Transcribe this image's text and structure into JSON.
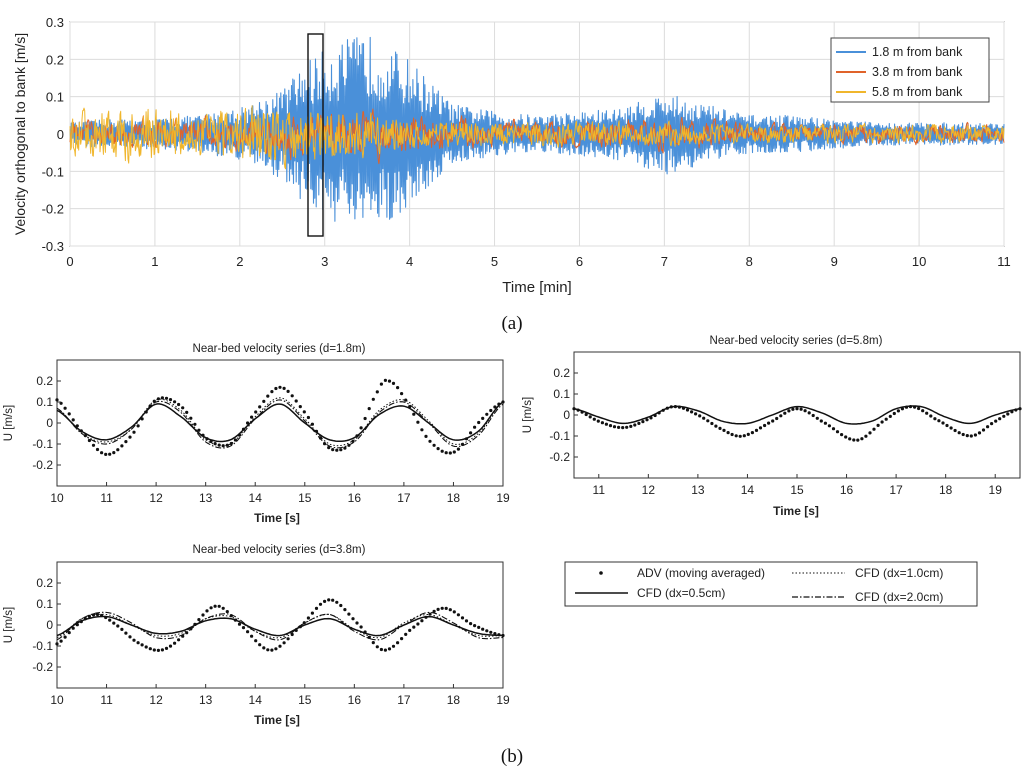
{
  "captions": {
    "a": "(a)",
    "b": "(b)"
  },
  "top_chart": {
    "xlabel": "Time [min]",
    "ylabel": "Velocity orthogonal to bank [m/s]",
    "xlim": [
      0,
      11
    ],
    "ylim": [
      -0.3,
      0.3
    ],
    "xticks": [
      "0",
      "1",
      "2",
      "3",
      "4",
      "5",
      "6",
      "7",
      "8",
      "9",
      "10",
      "11"
    ],
    "yticks": [
      "0.3",
      "0.2",
      "0.1",
      "0",
      "-0.1",
      "-0.2",
      "-0.3"
    ],
    "legend": [
      "1.8 m from bank",
      "3.8 m from bank",
      "5.8 m from bank"
    ]
  },
  "panels": {
    "d18": {
      "title": "Near-bed velocity series (d=1.8m)",
      "xlabel": "Time [s]",
      "ylabel": "U [m/s]"
    },
    "d58": {
      "title": "Near-bed velocity series (d=5.8m)",
      "xlabel": "Time [s]",
      "ylabel": "U [m/s]"
    },
    "d38": {
      "title": "Near-bed velocity series (d=3.8m)",
      "xlabel": "Time [s]",
      "ylabel": "U [m/s]"
    }
  },
  "small_ticks": {
    "y": [
      "0.2",
      "0.1",
      "0",
      "-0.1",
      "-0.2"
    ],
    "x_10_19": [
      "10",
      "11",
      "12",
      "13",
      "14",
      "15",
      "16",
      "17",
      "18",
      "19"
    ],
    "x_11_19": [
      "11",
      "12",
      "13",
      "14",
      "15",
      "16",
      "17",
      "18",
      "19"
    ]
  },
  "legend_b": {
    "adv": "ADV (moving averaged)",
    "cfd05": "CFD (dx=0.5cm)",
    "cfd10": "CFD (dx=1.0cm)",
    "cfd20": "CFD (dx=2.0cm)"
  },
  "colors": {
    "blue": "#4a90d9",
    "orange": "#e0632a",
    "yellow": "#f0b62c",
    "axis": "#444444",
    "grid": "#dcdcdc"
  },
  "chart_data": [
    {
      "type": "line",
      "x_unit": "min",
      "xlim": [
        0,
        11
      ],
      "ylim": [
        -0.3,
        0.3
      ],
      "highlight_box": {
        "x": [
          2.85,
          3.0
        ],
        "y": [
          -0.27,
          0.27
        ]
      },
      "series": [
        {
          "name": "1.8 m from bank",
          "color": "#4a90d9",
          "envelope_x": [
            0,
            0.5,
            1,
            1.5,
            2,
            2.5,
            2.8,
            3.2,
            3.5,
            4,
            4.5,
            5,
            5.5,
            6,
            6.5,
            7,
            7.5,
            8,
            8.5,
            9,
            9.5,
            10,
            10.5,
            11
          ],
          "envelope_amp": [
            0.03,
            0.04,
            0.04,
            0.05,
            0.07,
            0.12,
            0.2,
            0.25,
            0.27,
            0.2,
            0.08,
            0.06,
            0.05,
            0.06,
            0.07,
            0.11,
            0.08,
            0.05,
            0.05,
            0.04,
            0.03,
            0.03,
            0.03,
            0.03
          ]
        },
        {
          "name": "3.8 m from bank",
          "color": "#e0632a",
          "envelope_x": [
            0,
            1,
            2,
            3,
            4,
            5,
            6,
            7,
            8,
            9,
            10,
            11
          ],
          "envelope_amp": [
            0.04,
            0.05,
            0.05,
            0.08,
            0.07,
            0.04,
            0.04,
            0.05,
            0.04,
            0.03,
            0.03,
            0.03
          ]
        },
        {
          "name": "5.8 m from bank",
          "color": "#f0b62c",
          "envelope_x": [
            0,
            0.5,
            1,
            1.5,
            2,
            2.5,
            3,
            3.5,
            4,
            5,
            6,
            7,
            8,
            9,
            10,
            11
          ],
          "envelope_amp": [
            0.07,
            0.09,
            0.09,
            0.07,
            0.09,
            0.1,
            0.09,
            0.07,
            0.05,
            0.04,
            0.04,
            0.04,
            0.03,
            0.03,
            0.03,
            0.03
          ]
        }
      ]
    },
    {
      "type": "line",
      "title": "Near-bed velocity series (d=1.8m)",
      "xlim": [
        10,
        19
      ],
      "ylim": [
        -0.3,
        0.3
      ],
      "x_unit": "s",
      "series": [
        {
          "name": "ADV (moving averaged)",
          "style": "dots",
          "x": [
            10,
            10.5,
            11,
            11.5,
            12,
            12.5,
            13,
            13.5,
            14,
            14.5,
            15,
            15.5,
            16,
            16.5,
            16.7,
            17,
            17.5,
            18,
            18.5,
            19
          ],
          "y": [
            0.11,
            -0.04,
            -0.15,
            -0.06,
            0.11,
            0.08,
            -0.07,
            -0.1,
            0.05,
            0.17,
            0.05,
            -0.12,
            -0.08,
            0.16,
            0.2,
            0.12,
            -0.08,
            -0.14,
            0.0,
            0.1
          ]
        },
        {
          "name": "CFD (dx=0.5cm)",
          "style": "solid",
          "x": [
            10,
            10.5,
            11,
            11.5,
            12,
            12.5,
            13,
            13.5,
            14,
            14.5,
            15,
            15.5,
            16,
            16.5,
            17,
            17.5,
            18,
            18.5,
            19
          ],
          "y": [
            0.06,
            -0.04,
            -0.08,
            -0.02,
            0.09,
            0.03,
            -0.07,
            -0.08,
            0.02,
            0.09,
            0.0,
            -0.08,
            -0.07,
            0.04,
            0.08,
            0.0,
            -0.08,
            -0.04,
            0.1
          ]
        },
        {
          "name": "CFD (dx=1.0cm)",
          "style": "dotted",
          "x": [
            10,
            10.5,
            11,
            11.5,
            12,
            12.5,
            13,
            13.5,
            14,
            14.5,
            15,
            15.5,
            16,
            16.5,
            17,
            17.5,
            18,
            18.5,
            19
          ],
          "y": [
            0.07,
            -0.05,
            -0.09,
            -0.03,
            0.11,
            0.06,
            -0.08,
            -0.1,
            0.03,
            0.12,
            0.02,
            -0.1,
            -0.08,
            0.06,
            0.11,
            0.01,
            -0.1,
            -0.05,
            0.1
          ]
        },
        {
          "name": "CFD (dx=2.0cm)",
          "style": "dashdot",
          "x": [
            10,
            10.5,
            11,
            11.5,
            12,
            12.5,
            13,
            13.5,
            14,
            14.5,
            15,
            15.5,
            16,
            16.5,
            17,
            17.5,
            18,
            18.5,
            19
          ],
          "y": [
            0.07,
            -0.05,
            -0.1,
            -0.03,
            0.1,
            0.05,
            -0.09,
            -0.11,
            0.02,
            0.11,
            0.01,
            -0.11,
            -0.09,
            0.05,
            0.1,
            0.0,
            -0.11,
            -0.06,
            0.09
          ]
        }
      ]
    },
    {
      "type": "line",
      "title": "Near-bed velocity series (d=5.8m)",
      "xlim": [
        10.5,
        19.5
      ],
      "ylim": [
        -0.3,
        0.3
      ],
      "x_unit": "s",
      "series": [
        {
          "name": "ADV (moving averaged)",
          "style": "dots",
          "x": [
            10.5,
            11,
            11.5,
            12,
            12.5,
            13,
            13.5,
            13.9,
            14.5,
            15,
            15.5,
            16.2,
            16.8,
            17.3,
            17.8,
            18.5,
            19,
            19.5
          ],
          "y": [
            0.03,
            -0.03,
            -0.06,
            -0.02,
            0.04,
            0.0,
            -0.07,
            -0.1,
            -0.03,
            0.03,
            -0.03,
            -0.12,
            -0.02,
            0.04,
            -0.02,
            -0.1,
            -0.03,
            0.03
          ]
        },
        {
          "name": "CFD (dx=0.5cm)",
          "style": "solid",
          "x": [
            10.5,
            11,
            11.5,
            12,
            12.5,
            13,
            13.5,
            14,
            14.5,
            15,
            15.5,
            16,
            16.5,
            17,
            17.5,
            18,
            18.5,
            19,
            19.5
          ],
          "y": [
            0.03,
            -0.01,
            -0.04,
            -0.01,
            0.04,
            0.02,
            -0.03,
            -0.04,
            0.0,
            0.04,
            0.01,
            -0.04,
            -0.03,
            0.03,
            0.04,
            -0.01,
            -0.04,
            0.0,
            0.03
          ]
        }
      ]
    },
    {
      "type": "line",
      "title": "Near-bed velocity series (d=3.8m)",
      "xlim": [
        10,
        19
      ],
      "ylim": [
        -0.3,
        0.3
      ],
      "x_unit": "s",
      "series": [
        {
          "name": "ADV (moving averaged)",
          "style": "dots",
          "x": [
            10,
            10.4,
            10.8,
            11.2,
            11.6,
            12.1,
            12.6,
            13.2,
            13.7,
            14.3,
            14.9,
            15.5,
            16.1,
            16.6,
            17.2,
            17.8,
            18.4,
            19
          ],
          "y": [
            -0.09,
            0.0,
            0.05,
            0.0,
            -0.08,
            -0.12,
            -0.04,
            0.09,
            0.0,
            -0.12,
            -0.01,
            0.12,
            0.0,
            -0.12,
            -0.01,
            0.08,
            0.0,
            -0.05
          ]
        },
        {
          "name": "CFD (dx=0.5cm)",
          "style": "solid",
          "x": [
            10,
            10.5,
            11,
            11.5,
            12,
            12.5,
            13,
            13.5,
            14,
            14.5,
            15,
            15.5,
            16,
            16.5,
            17,
            17.5,
            18,
            18.5,
            19
          ],
          "y": [
            -0.05,
            0.02,
            0.04,
            0.0,
            -0.04,
            -0.03,
            0.02,
            0.03,
            -0.02,
            -0.05,
            0.0,
            0.03,
            -0.02,
            -0.05,
            0.0,
            0.04,
            0.0,
            -0.04,
            -0.05
          ]
        },
        {
          "name": "CFD (dx=1.0cm)",
          "style": "dotted",
          "x": [
            10,
            10.5,
            11,
            11.5,
            12,
            12.5,
            13,
            13.5,
            14,
            14.5,
            15,
            15.5,
            16,
            16.5,
            17,
            17.5,
            18,
            18.5,
            19
          ],
          "y": [
            -0.06,
            0.03,
            0.05,
            0.0,
            -0.05,
            -0.04,
            0.03,
            0.04,
            -0.03,
            -0.06,
            0.01,
            0.05,
            -0.02,
            -0.06,
            0.01,
            0.05,
            0.0,
            -0.05,
            -0.05
          ]
        },
        {
          "name": "CFD (dx=2.0cm)",
          "style": "dashdot",
          "x": [
            10,
            10.5,
            11,
            11.5,
            12,
            12.5,
            13,
            13.5,
            14,
            14.5,
            15,
            15.5,
            16,
            16.5,
            17,
            17.5,
            18,
            18.5,
            19
          ],
          "y": [
            -0.07,
            0.03,
            0.06,
            0.01,
            -0.06,
            -0.05,
            0.03,
            0.05,
            -0.03,
            -0.07,
            0.01,
            0.05,
            -0.03,
            -0.07,
            0.0,
            0.06,
            0.01,
            -0.06,
            -0.06
          ]
        }
      ]
    }
  ]
}
